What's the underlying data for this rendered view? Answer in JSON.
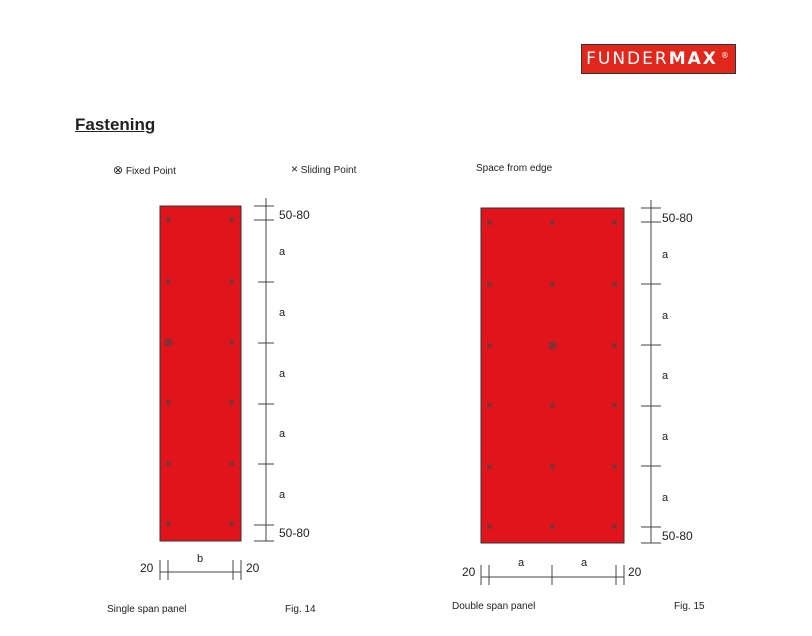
{
  "logo": {
    "part1": "FUNDER",
    "part2": "MAX",
    "mark": "®"
  },
  "title": "Fastening",
  "legend": {
    "fixed_symbol": "⊗",
    "fixed_label": "Fixed Point",
    "sliding_symbol": "×",
    "sliding_label": "Sliding Point",
    "edge_label": "Space from edge"
  },
  "fig14": {
    "caption": "Single span panel",
    "fig_label": "Fig. 14",
    "dims_vertical": [
      "50-80",
      "a",
      "a",
      "a",
      "a",
      "a",
      "50-80"
    ],
    "dims_horizontal": [
      "20",
      "b",
      "20"
    ]
  },
  "fig15": {
    "caption": "Double span panel",
    "fig_label": "Fig. 15",
    "dims_vertical": [
      "50-80",
      "a",
      "a",
      "a",
      "a",
      "a",
      "50-80"
    ],
    "dims_horizontal": [
      "20",
      "a",
      "a",
      "20"
    ]
  },
  "colors": {
    "panel": "#e1141c",
    "brand": "#e1261c",
    "line": "#333333"
  }
}
